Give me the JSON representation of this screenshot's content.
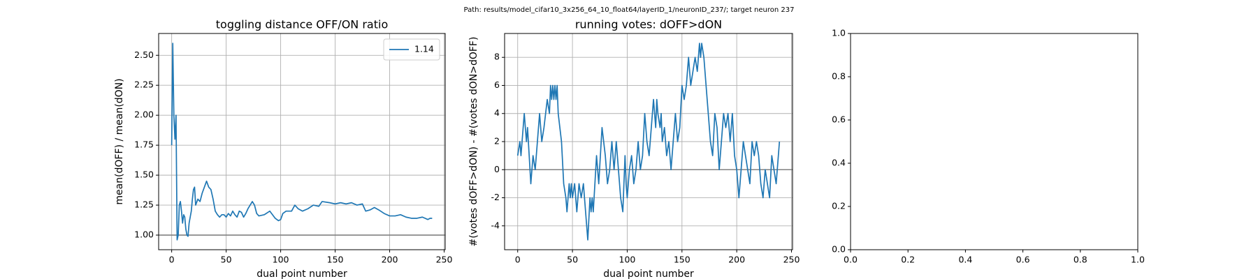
{
  "figure_title": "Path: results/model_cifar10_3x256_64_10_float64/layerID_1/neuronID_237/; target neuron 237",
  "chart_data": [
    {
      "type": "line",
      "title": "toggling distance OFF/ON ratio",
      "xlabel": "dual point number",
      "ylabel": "mean(dOFF) / mean(dON)",
      "xlim": [
        -11.95,
        250.95
      ],
      "xticks": [
        0,
        50,
        100,
        150,
        200,
        250
      ],
      "ylim": [
        0.878,
        2.682
      ],
      "yticks": [
        {
          "value": 1,
          "label": "1.00"
        },
        {
          "value": 1.25,
          "label": "1.25"
        },
        {
          "value": 1.5,
          "label": "1.50"
        },
        {
          "value": 1.75,
          "label": "1.75"
        },
        {
          "value": 2,
          "label": "2.00"
        },
        {
          "value": 2.25,
          "label": "2.25"
        },
        {
          "value": 2.5,
          "label": "2.50"
        }
      ],
      "grid": true,
      "hlines": [
        1
      ],
      "hline_color": "#808080",
      "legend": "upper right",
      "series": [
        {
          "name": "1.14",
          "color": "#1f77b4",
          "x": [
            0,
            1,
            2,
            3,
            4,
            5,
            6,
            7,
            8,
            9,
            10,
            11,
            12,
            13,
            14,
            15,
            16,
            17,
            18,
            19,
            20,
            21,
            22,
            24,
            26,
            28,
            30,
            32,
            34,
            36,
            38,
            40,
            42,
            44,
            46,
            48,
            50,
            52,
            54,
            56,
            58,
            60,
            62,
            64,
            66,
            68,
            70,
            72,
            74,
            76,
            78,
            80,
            85,
            90,
            95,
            98,
            100,
            102,
            105,
            110,
            113,
            116,
            120,
            125,
            130,
            135,
            138,
            145,
            150,
            155,
            160,
            165,
            170,
            175,
            178,
            182,
            186,
            190,
            195,
            200,
            205,
            210,
            215,
            220,
            225,
            230,
            235,
            237,
            239
          ],
          "values": [
            1.75,
            2.6,
            2.0,
            1.8,
            2.0,
            0.96,
            1.0,
            1.25,
            1.28,
            1.2,
            1.1,
            1.17,
            1.15,
            1.05,
            1.0,
            0.99,
            1.1,
            1.15,
            1.2,
            1.3,
            1.38,
            1.4,
            1.25,
            1.3,
            1.28,
            1.35,
            1.4,
            1.45,
            1.4,
            1.38,
            1.3,
            1.2,
            1.17,
            1.15,
            1.17,
            1.17,
            1.15,
            1.18,
            1.16,
            1.2,
            1.17,
            1.15,
            1.2,
            1.19,
            1.15,
            1.18,
            1.22,
            1.25,
            1.28,
            1.25,
            1.18,
            1.16,
            1.17,
            1.2,
            1.14,
            1.12,
            1.13,
            1.18,
            1.2,
            1.2,
            1.25,
            1.22,
            1.2,
            1.22,
            1.25,
            1.24,
            1.28,
            1.27,
            1.26,
            1.27,
            1.26,
            1.27,
            1.25,
            1.26,
            1.2,
            1.21,
            1.23,
            1.21,
            1.18,
            1.16,
            1.16,
            1.17,
            1.15,
            1.14,
            1.14,
            1.15,
            1.13,
            1.14,
            1.14
          ]
        }
      ]
    },
    {
      "type": "line",
      "title": "running votes: dOFF>dON",
      "xlabel": "dual point number",
      "ylabel": "#(votes dOFF>dON) - #(votes dON>dOFF)",
      "xlim": [
        -11.95,
        250.95
      ],
      "xticks": [
        0,
        50,
        100,
        150,
        200,
        250
      ],
      "ylim": [
        -5.7,
        9.7
      ],
      "yticks": [
        -4,
        -2,
        0,
        2,
        4,
        6,
        8
      ],
      "grid": true,
      "hlines": [
        0
      ],
      "hline_color": "#808080",
      "series": [
        {
          "color": "#1f77b4",
          "x": [
            0,
            2,
            3,
            4,
            6,
            8,
            9,
            12,
            14,
            16,
            20,
            22,
            24,
            27,
            29,
            30,
            31,
            32,
            33,
            34,
            35,
            36,
            37,
            40,
            42,
            44,
            45,
            47,
            48,
            49,
            50,
            52,
            54,
            56,
            58,
            60,
            62,
            64,
            66,
            67,
            68,
            69,
            72,
            74,
            77,
            80,
            82,
            84,
            86,
            88,
            90,
            92,
            94,
            96,
            98,
            99,
            100,
            102,
            104,
            106,
            108,
            110,
            112,
            114,
            116,
            118,
            120,
            122,
            124,
            126,
            127,
            128,
            130,
            131,
            132,
            134,
            136,
            138,
            140,
            142,
            144,
            146,
            148,
            150,
            152,
            154,
            156,
            158,
            160,
            162,
            164,
            166,
            167,
            168,
            170,
            172,
            174,
            176,
            178,
            180,
            182,
            184,
            186,
            188,
            190,
            192,
            194,
            196,
            198,
            200,
            202,
            204,
            206,
            208,
            210,
            212,
            214,
            216,
            218,
            220,
            222,
            224,
            226,
            228,
            230,
            232,
            234,
            236,
            238,
            239
          ],
          "values": [
            1,
            2,
            1,
            2,
            4,
            2,
            3,
            -1,
            1,
            0,
            4,
            2,
            3,
            5,
            4,
            6,
            5,
            6,
            5,
            6,
            5,
            6,
            4,
            2,
            -1,
            -2,
            -3,
            -1,
            -2,
            -1,
            -2,
            -1,
            -3,
            -1,
            -2,
            -1,
            -3,
            -5,
            -2,
            -3,
            -2,
            -3,
            1,
            -1,
            3,
            1,
            -1,
            0,
            2,
            0,
            2,
            0,
            -2,
            -3,
            1,
            -1,
            -2,
            0,
            1,
            -1,
            0,
            2,
            0,
            1,
            4,
            2,
            1,
            3,
            5,
            3,
            5,
            4,
            3,
            4,
            2,
            3,
            1,
            2,
            0,
            2,
            4,
            2,
            3,
            6,
            5,
            6,
            8,
            6,
            7,
            8,
            7,
            9,
            8,
            9,
            8,
            6,
            4,
            2,
            1,
            4,
            3,
            0,
            2,
            4,
            3,
            4,
            2,
            4,
            1,
            0,
            -2,
            0,
            2,
            1,
            0,
            -1,
            2,
            1,
            2,
            1,
            -1,
            -2,
            0,
            -1,
            -2,
            1,
            0,
            -1,
            1,
            2
          ]
        }
      ]
    },
    {
      "type": "line",
      "grid": false,
      "xlim": [
        0,
        1
      ],
      "xticks": [
        {
          "value": 0,
          "label": "0.0"
        },
        {
          "value": 0.2,
          "label": "0.2"
        },
        {
          "value": 0.4,
          "label": "0.4"
        },
        {
          "value": 0.6,
          "label": "0.6"
        },
        {
          "value": 0.8,
          "label": "0.8"
        },
        {
          "value": 1,
          "label": "1.0"
        }
      ],
      "ylim": [
        0,
        1
      ],
      "yticks": [
        {
          "value": 0,
          "label": "0.0"
        },
        {
          "value": 0.2,
          "label": "0.2"
        },
        {
          "value": 0.4,
          "label": "0.4"
        },
        {
          "value": 0.6,
          "label": "0.6"
        },
        {
          "value": 0.8,
          "label": "0.8"
        },
        {
          "value": 1,
          "label": "1.0"
        }
      ]
    }
  ]
}
